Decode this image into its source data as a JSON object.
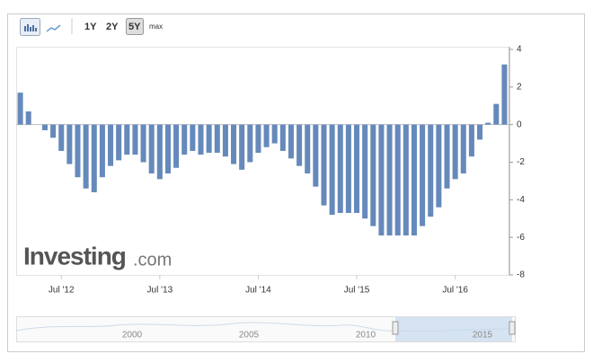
{
  "toolbar": {
    "buttons": [
      "1Y",
      "2Y",
      "5Y",
      "max"
    ]
  },
  "logo": {
    "brand": "Investing",
    "suffix": ".com"
  },
  "navigator": {
    "labels": [
      "2000",
      "2005",
      "2010",
      "2015"
    ]
  },
  "chart_data": {
    "type": "bar",
    "color": "#6689bb",
    "axis_side": "right",
    "grid": false,
    "categories": [
      null,
      null,
      null,
      null,
      null,
      "Jul '12",
      null,
      null,
      null,
      null,
      null,
      null,
      null,
      null,
      null,
      null,
      null,
      "Jul '13",
      null,
      null,
      null,
      null,
      null,
      null,
      null,
      null,
      null,
      null,
      null,
      "Jul '14",
      null,
      null,
      null,
      null,
      null,
      null,
      null,
      null,
      null,
      null,
      null,
      "Jul '15",
      null,
      null,
      null,
      null,
      null,
      null,
      null,
      null,
      null,
      null,
      null,
      "Jul '16",
      null,
      null,
      null,
      null,
      null,
      null
    ],
    "values": [
      1.7,
      0.7,
      0,
      -0.3,
      -0.7,
      -1.4,
      -2.1,
      -2.8,
      -3.4,
      -3.6,
      -2.8,
      -2.2,
      -1.9,
      -1.6,
      -1.6,
      -2.0,
      -2.6,
      -2.9,
      -2.6,
      -2.3,
      -1.6,
      -1.4,
      -1.6,
      -1.5,
      -1.5,
      -1.7,
      -2.1,
      -2.4,
      -2.0,
      -1.5,
      -1.2,
      -1.0,
      -1.4,
      -1.8,
      -2.2,
      -2.6,
      -3.3,
      -4.3,
      -4.8,
      -4.7,
      -4.7,
      -4.7,
      -5.0,
      -5.4,
      -5.9,
      -5.9,
      -5.9,
      -5.9,
      -5.9,
      -5.4,
      -4.9,
      -4.4,
      -3.4,
      -2.9,
      -2.6,
      -1.7,
      -0.8,
      0.1,
      1.1,
      3.2
    ],
    "ylim": [
      -8,
      4
    ],
    "yticks": [
      4,
      2,
      0,
      -2,
      -4,
      -6,
      -8
    ]
  }
}
